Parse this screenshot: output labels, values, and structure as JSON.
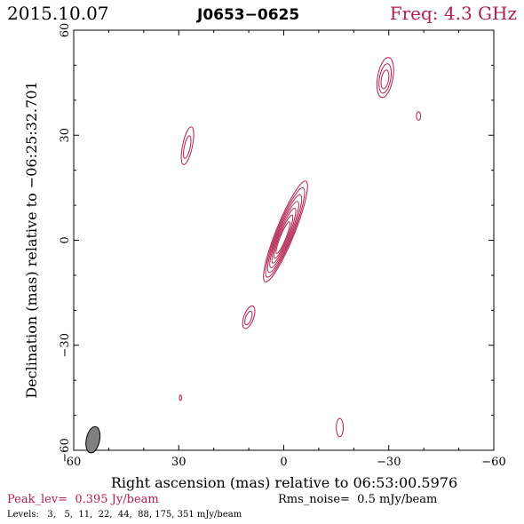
{
  "header": {
    "date": "2015.10.07",
    "source": "J0653−0625",
    "freq": "Freq: 4.3 GHz"
  },
  "footer": {
    "peak": "Peak_lev=  0.395 Jy/beam",
    "rms": "Rms_noise=  0.5 mJy/beam",
    "levels": "Levels:   3,   5,  11,  22,  44,  88, 175, 351 mJy/beam"
  },
  "colors": {
    "contour": "#b01e4c",
    "axis": "#000000",
    "beam": "#808080",
    "header_freq": "#b01e4c",
    "footer_peak": "#b01e4c"
  },
  "chart_data": {
    "type": "contour",
    "xlabel": "Right ascension (mas) relative to 06:53:00.5976",
    "ylabel": "Declination (mas) relative to −06:25:32.701",
    "xlim": [
      60,
      -60
    ],
    "ylim": [
      -60,
      60
    ],
    "x_ticks": [
      60,
      30,
      0,
      -30,
      -60
    ],
    "y_ticks": [
      -60,
      -30,
      0,
      30,
      60
    ],
    "x_tick_labels": [
      "60",
      "30",
      "0",
      "−30",
      "−60"
    ],
    "y_tick_labels": [
      "−60",
      "−30",
      "0",
      "30",
      "60"
    ],
    "levels_mJy": [
      3,
      5,
      11,
      22,
      44,
      88,
      175,
      351
    ],
    "peak_Jy_per_beam": 0.395,
    "rms_mJy_per_beam": 0.5,
    "beam": {
      "x": 54.5,
      "y": -57.0,
      "major": 3.8,
      "minor": 1.9,
      "pa_deg": 12
    },
    "components": [
      {
        "name": "core",
        "x": -0.5,
        "y": 2.5,
        "width": 2.6,
        "height": 15.5,
        "pa_deg": 22,
        "n_contours": 7
      },
      {
        "name": "knot-ne",
        "x": -29.0,
        "y": 46.5,
        "width": 2.2,
        "height": 5.8,
        "pa_deg": 10,
        "n_contours": 3
      },
      {
        "name": "blob-ne-small",
        "x": -38.5,
        "y": 35.5,
        "width": 0.6,
        "height": 1.2,
        "pa_deg": 0,
        "n_contours": 1
      },
      {
        "name": "knot-nw",
        "x": 27.5,
        "y": 27.0,
        "width": 1.4,
        "height": 5.5,
        "pa_deg": 12,
        "n_contours": 2
      },
      {
        "name": "knot-sw",
        "x": 10.0,
        "y": -22.0,
        "width": 1.4,
        "height": 3.4,
        "pa_deg": 20,
        "n_contours": 2
      },
      {
        "name": "blob-w-small",
        "x": 29.5,
        "y": -45.0,
        "width": 0.3,
        "height": 0.8,
        "pa_deg": 0,
        "n_contours": 1
      },
      {
        "name": "blob-s",
        "x": -16.0,
        "y": -53.5,
        "width": 1.0,
        "height": 2.6,
        "pa_deg": 0,
        "n_contours": 1
      }
    ]
  }
}
